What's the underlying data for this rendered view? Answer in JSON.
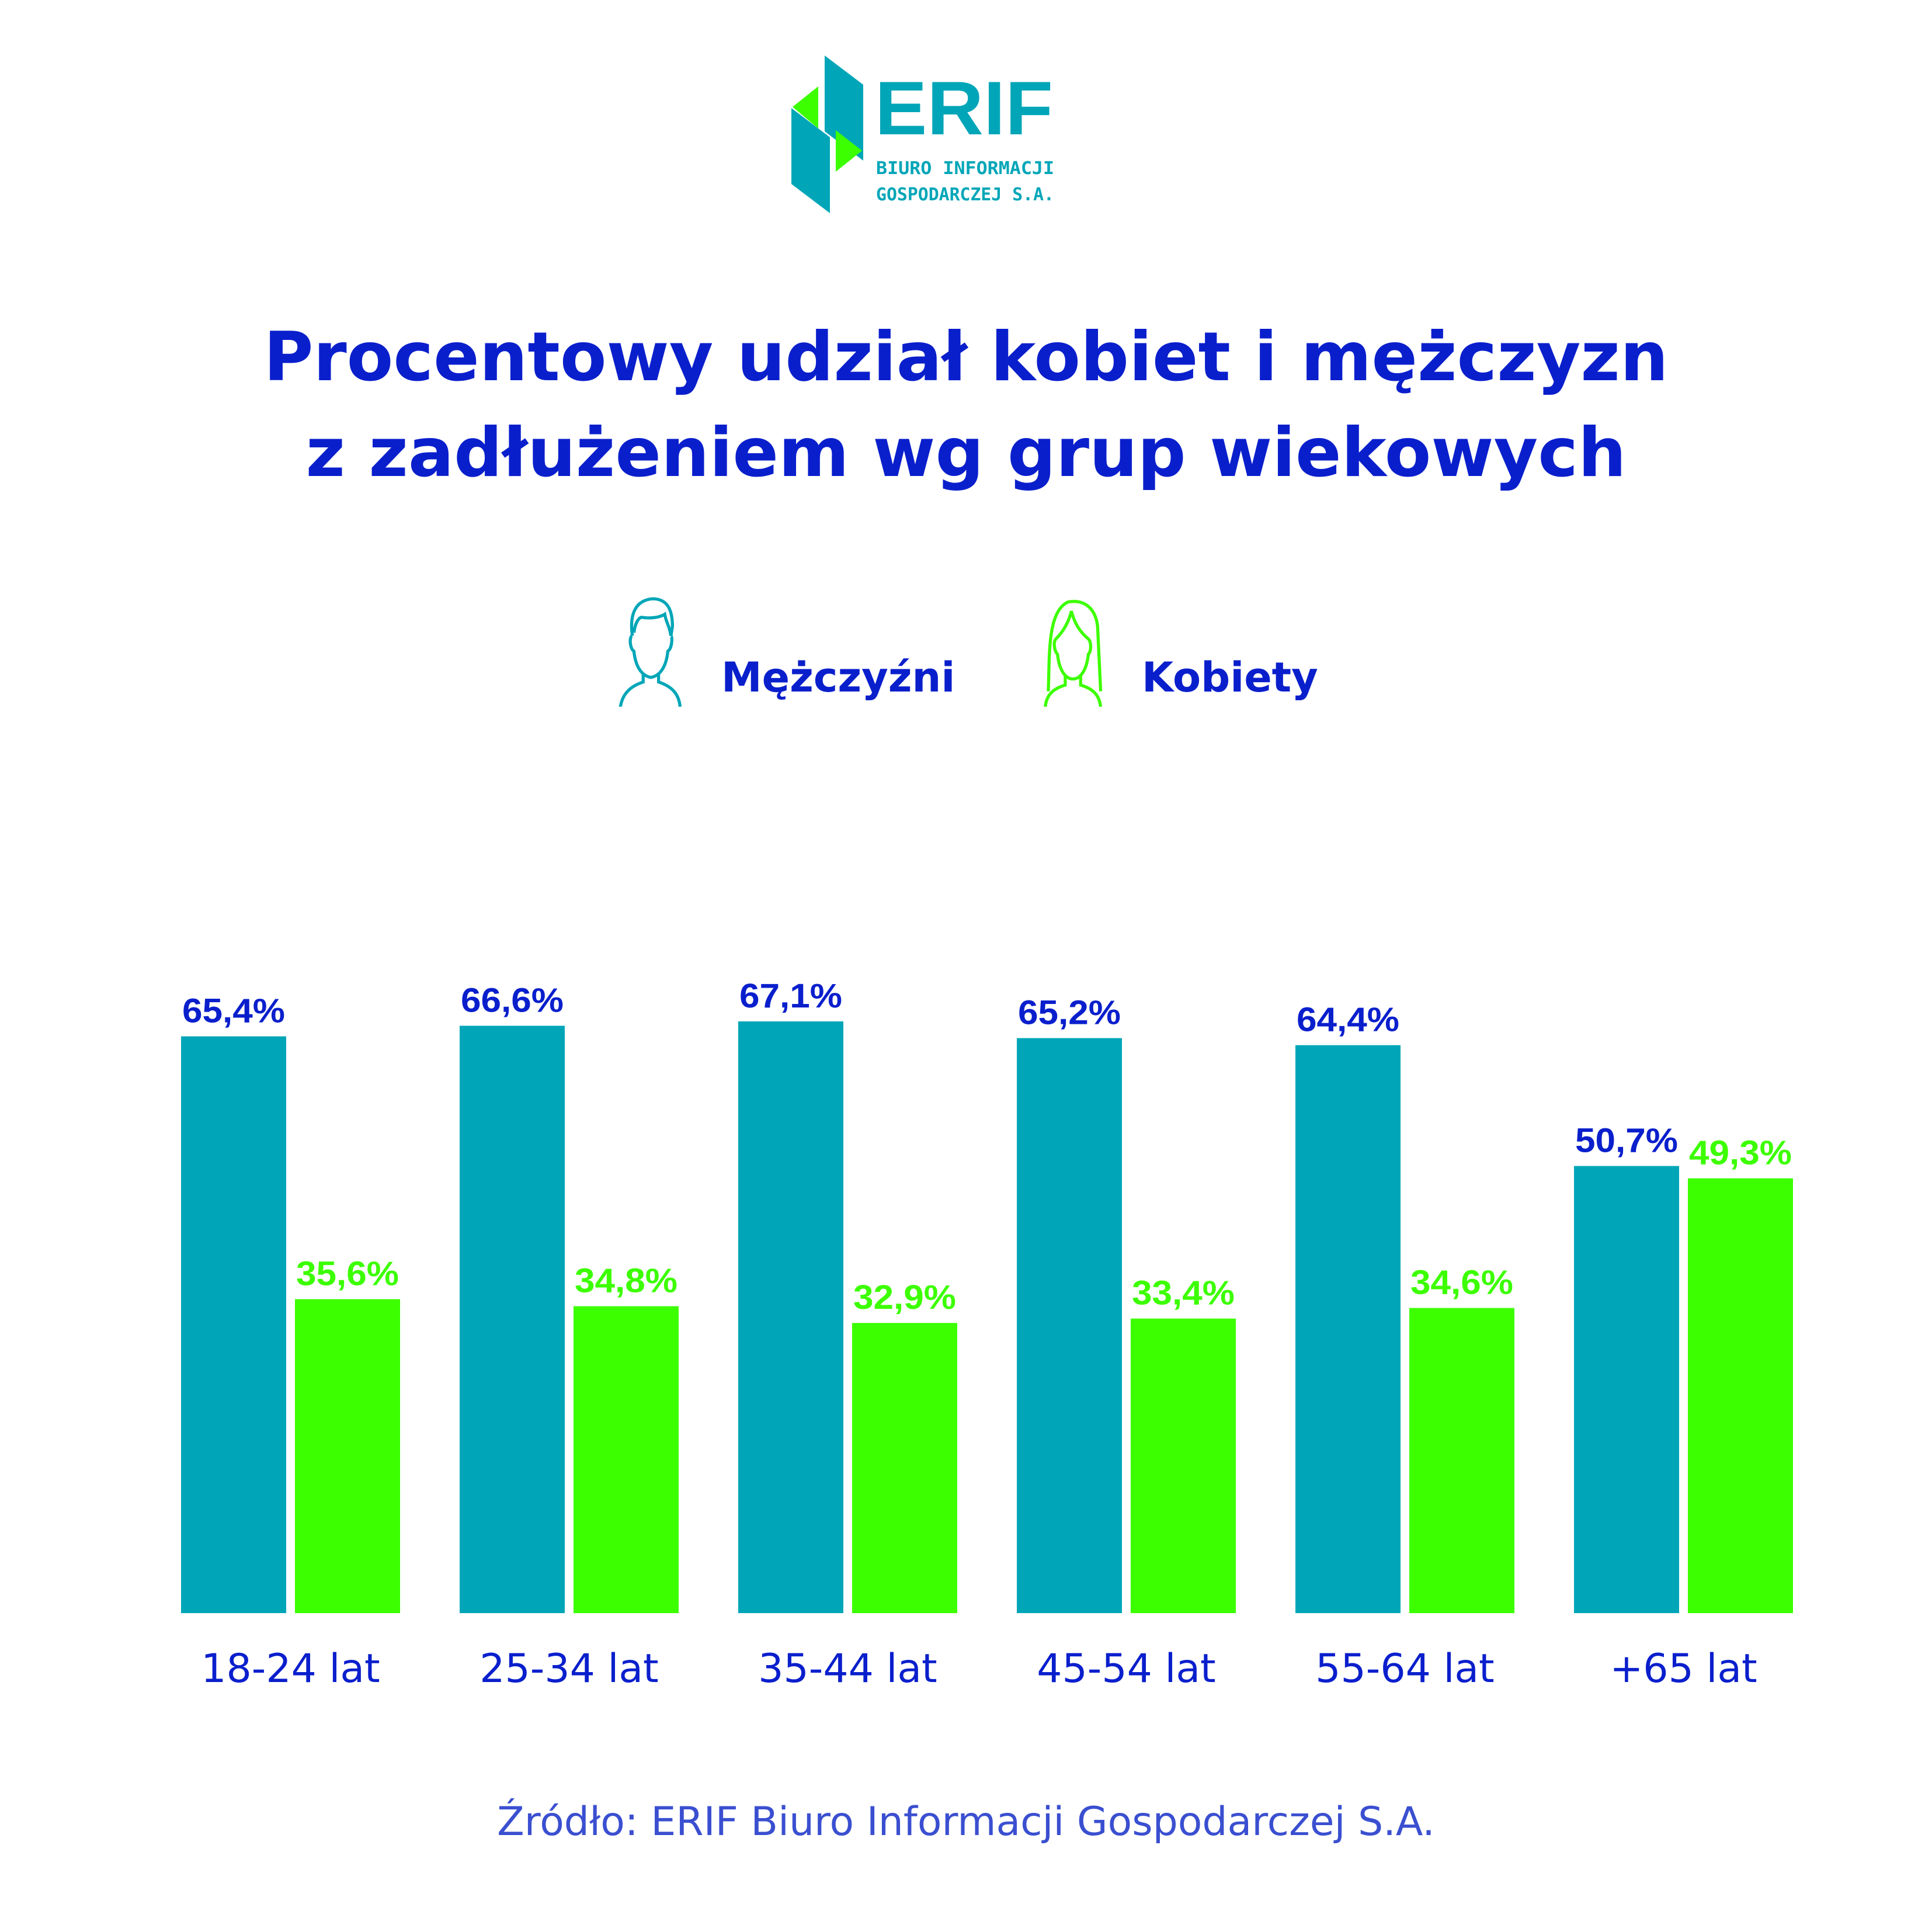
{
  "logo": {
    "name": "ERIF",
    "line1": "BIURO INFORMACJI",
    "line2": "GOSPODARCZEJ S.A."
  },
  "title": {
    "line1": "Procentowy udział kobiet i mężczyzn",
    "line2": "z zadłużeniem wg grup wiekowych"
  },
  "legend": [
    {
      "label": "Mężczyźni",
      "icon": "man-icon",
      "color": "#00a6b8"
    },
    {
      "label": "Kobiety",
      "icon": "woman-icon",
      "color": "#3cff00"
    }
  ],
  "source": "Źródło: ERIF Biuro Informacji Gospodarczej S.A.",
  "chart_data": {
    "type": "bar",
    "title": "Procentowy udział kobiet i mężczyzn z zadłużeniem wg grup wiekowych",
    "categories": [
      "18-24 lat",
      "25-34 lat",
      "35-44 lat",
      "45-54 lat",
      "55-64 lat",
      "+65 lat"
    ],
    "series": [
      {
        "name": "Mężczyźni",
        "color": "#00a6b8",
        "label_color": "#0a1fcc",
        "values": [
          65.4,
          66.6,
          67.1,
          65.2,
          64.4,
          50.7
        ],
        "labels": [
          "65,4%",
          "66,6%",
          "67,1%",
          "65,2%",
          "64,4%",
          "50,7%"
        ]
      },
      {
        "name": "Kobiety",
        "color": "#3cff00",
        "label_color": "#3cff00",
        "values": [
          35.6,
          34.8,
          32.9,
          33.4,
          34.6,
          49.3
        ],
        "labels": [
          "35,6%",
          "34,8%",
          "32,9%",
          "33,4%",
          "34,6%",
          "49,3%"
        ]
      }
    ],
    "xlabel": "",
    "ylabel": "",
    "ylim": [
      0,
      100
    ],
    "grid": false,
    "legend_position": "top"
  }
}
